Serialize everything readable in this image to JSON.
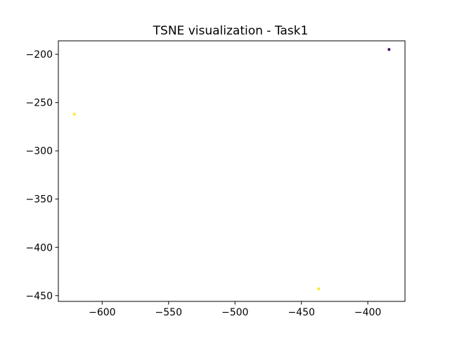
{
  "chart_data": {
    "type": "scatter",
    "title": "TSNE visualization - Task1",
    "xlabel": "",
    "ylabel": "",
    "xlim": [
      -633,
      -372
    ],
    "ylim": [
      -456,
      -186
    ],
    "x_ticks": [
      -600,
      -550,
      -500,
      -450,
      -400
    ],
    "y_ticks": [
      -200,
      -250,
      -300,
      -350,
      -400,
      -450
    ],
    "x_tick_labels": [
      "−600",
      "−550",
      "−500",
      "−450",
      "−400"
    ],
    "y_tick_labels": [
      "−200",
      "−250",
      "−300",
      "−350",
      "−400",
      "−450"
    ],
    "grid": false,
    "legend": "none",
    "points": [
      {
        "x": -384,
        "y": -195,
        "color": "#440154"
      },
      {
        "x": -621,
        "y": -262,
        "color": "#fde725"
      },
      {
        "x": -437,
        "y": -443,
        "color": "#fde725"
      }
    ]
  }
}
